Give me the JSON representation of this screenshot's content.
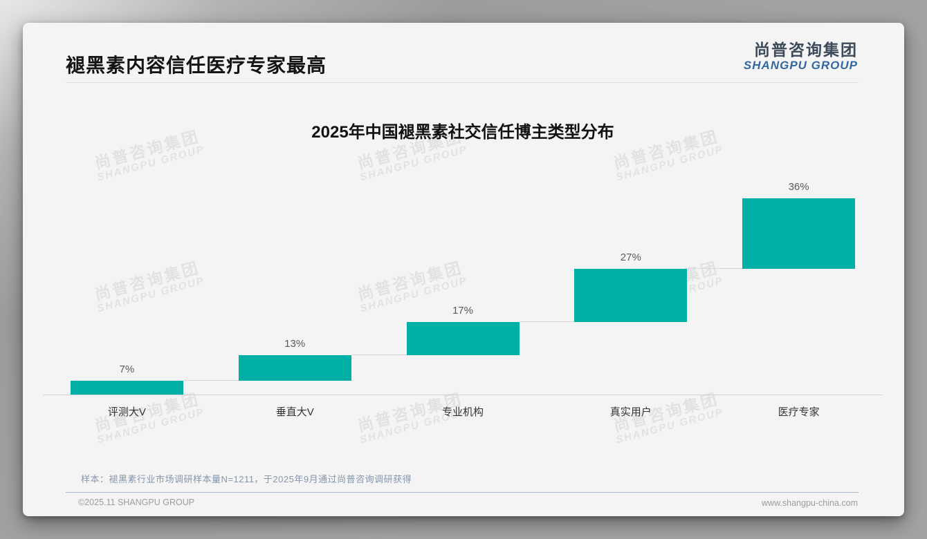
{
  "page": {
    "title": "褪黑素内容信任医疗专家最高",
    "logo": {
      "cn": "尚普咨询集团",
      "en": "SHANGPU GROUP"
    },
    "watermark": {
      "cn": "尚普咨询集团",
      "en": "SHANGPU GROUP"
    },
    "footer": {
      "source_note": "样本：褪黑素行业市场调研样本量N=1211，于2025年9月通过尚普咨询调研获得",
      "copyright": "©2025.11 SHANGPU GROUP",
      "website": "www.shangpu-china.com"
    }
  },
  "chart_data": {
    "type": "bar",
    "subtype": "waterfall",
    "title": "2025年中国褪黑素社交信任博主类型分布",
    "categories": [
      "评测大V",
      "垂直大V",
      "专业机构",
      "真实用户",
      "医疗专家"
    ],
    "values": [
      7,
      13,
      17,
      27,
      36
    ],
    "labels": [
      "7%",
      "13%",
      "17%",
      "27%",
      "36%"
    ],
    "cumulative": [
      7,
      20,
      37,
      64,
      100
    ],
    "xlabel": "",
    "ylabel": "",
    "ylim": [
      0,
      100
    ],
    "grid": false,
    "legend": false,
    "bar_color": "#00AFA5",
    "axis_line_color": "#d2d2d2",
    "connector_color": "#d6d6d6"
  }
}
